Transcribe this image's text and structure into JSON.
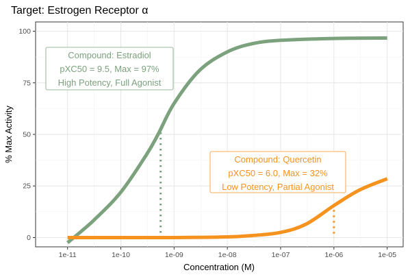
{
  "chart_data": {
    "type": "line",
    "title": "Target: Estrogen Receptor α",
    "xlabel": "Concentration (M)",
    "ylabel": "% Max Activity",
    "x_scale": "log10",
    "xlim": [
      1e-11,
      1e-05
    ],
    "ylim": [
      0,
      100
    ],
    "x_ticks": [
      1e-11,
      1e-10,
      1e-09,
      1e-08,
      1e-07,
      1e-06,
      1e-05
    ],
    "x_tick_labels": [
      "1e-11",
      "1e-10",
      "1e-09",
      "1e-08",
      "1e-07",
      "1e-06",
      "1e-05"
    ],
    "y_ticks": [
      0,
      25,
      50,
      75,
      100
    ],
    "y_tick_labels": [
      "0",
      "25",
      "50",
      "75",
      "100"
    ],
    "grid": true,
    "series": [
      {
        "compound": "Estradiol",
        "pxc50": 9.5,
        "max": 97,
        "color": "#7ba17d",
        "points": [
          [
            1e-11,
            -2.5
          ],
          [
            3e-11,
            8
          ],
          [
            1e-10,
            22
          ],
          [
            3e-10,
            40
          ],
          [
            5e-10,
            50
          ],
          [
            1e-09,
            65
          ],
          [
            3e-09,
            81
          ],
          [
            1e-08,
            90
          ],
          [
            3e-08,
            94
          ],
          [
            1e-07,
            95.6
          ],
          [
            1e-06,
            96.5
          ],
          [
            1e-05,
            96.7
          ]
        ],
        "ec50_marker": {
          "x": 5.6e-10,
          "y": 51
        },
        "annotation": {
          "lines": [
            "Compound: Estradiol",
            "pXC50 = 9.5, Max = 97%",
            "High Potency, Full Agonist"
          ]
        }
      },
      {
        "compound": "Quercetin",
        "pxc50": 6.0,
        "max": 32,
        "color": "#f6921e",
        "points": [
          [
            1e-11,
            0
          ],
          [
            1e-09,
            0
          ],
          [
            1e-08,
            0.3
          ],
          [
            3e-08,
            1
          ],
          [
            1e-07,
            2.5
          ],
          [
            3e-07,
            6.5
          ],
          [
            1e-06,
            15.5
          ],
          [
            3e-06,
            23
          ],
          [
            1e-05,
            28.5
          ]
        ],
        "ec50_marker": {
          "x": 1e-06,
          "y": 16
        },
        "annotation": {
          "lines": [
            "Compound: Quercetin",
            "pXC50 = 6.0, Max = 32%",
            "Low Potency, Partial Agonist"
          ]
        }
      }
    ]
  }
}
